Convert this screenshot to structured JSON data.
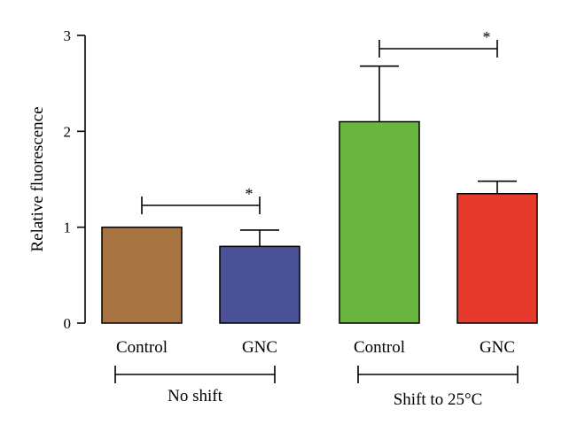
{
  "chart_data": {
    "type": "bar",
    "ylabel": "Relative fluorescence",
    "ylim": [
      0,
      3
    ],
    "yticks": [
      "0",
      "1",
      "2",
      "3"
    ],
    "categories": [
      "Control",
      "GNC",
      "Control",
      "GNC"
    ],
    "values": [
      1.0,
      0.8,
      2.1,
      1.35
    ],
    "errors": [
      0,
      0.17,
      0.58,
      0.13
    ],
    "colors": [
      "#a87441",
      "#4a5196",
      "#6ab540",
      "#e53a2c"
    ],
    "groups": [
      {
        "label": "No shift",
        "bars": [
          0,
          1
        ]
      },
      {
        "label": "Shift to 25°C",
        "bars": [
          2,
          3
        ]
      }
    ],
    "significance": [
      {
        "bars": [
          0,
          1
        ],
        "label": "*"
      },
      {
        "bars": [
          2,
          3
        ],
        "label": "*"
      }
    ],
    "grid": false,
    "legend": "none"
  }
}
